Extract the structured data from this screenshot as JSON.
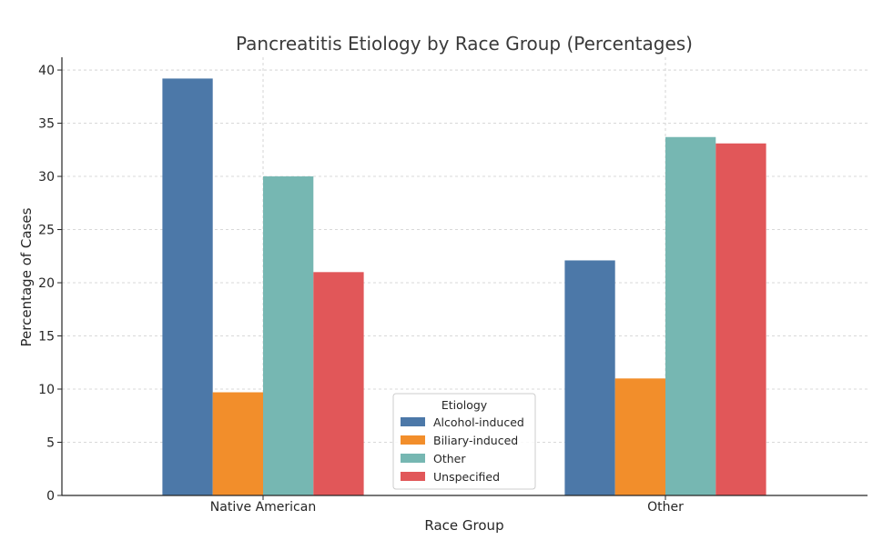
{
  "chart_data": {
    "type": "bar",
    "title": "Pancreatitis Etiology by Race Group (Percentages)",
    "xlabel": "Race Group",
    "ylabel": "Percentage of Cases",
    "categories": [
      "Native American",
      "Other"
    ],
    "series": [
      {
        "name": "Alcohol-induced",
        "values": [
          39.2,
          22.1
        ],
        "color": "#4c78a8"
      },
      {
        "name": "Biliary-induced",
        "values": [
          9.7,
          11.0
        ],
        "color": "#f28e2b"
      },
      {
        "name": "Other",
        "values": [
          30.0,
          33.7
        ],
        "color": "#76b7b2"
      },
      {
        "name": "Unspecified",
        "values": [
          21.0,
          33.1
        ],
        "color": "#e15759"
      }
    ],
    "ylim": [
      0,
      41.2
    ],
    "yticks": [
      0,
      5,
      10,
      15,
      20,
      25,
      30,
      35,
      40
    ],
    "grid": true,
    "legend": {
      "title": "Etiology",
      "placement": "bottom-center"
    }
  }
}
